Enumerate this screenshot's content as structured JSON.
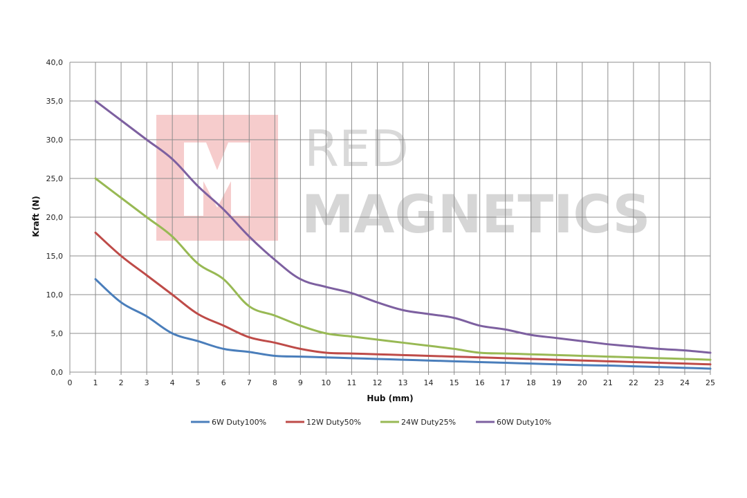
{
  "chart_data": {
    "type": "line",
    "xlabel": "Hub (mm)",
    "ylabel": "Kraft (N)",
    "xlim": [
      0,
      25
    ],
    "ylim": [
      0,
      40
    ],
    "x_ticks": [
      "0",
      "1",
      "2",
      "3",
      "4",
      "5",
      "6",
      "7",
      "8",
      "9",
      "10",
      "11",
      "12",
      "13",
      "14",
      "15",
      "16",
      "17",
      "18",
      "19",
      "20",
      "21",
      "22",
      "23",
      "24",
      "25"
    ],
    "y_ticks": [
      "0,0",
      "5,0",
      "10,0",
      "15,0",
      "20,0",
      "25,0",
      "30,0",
      "35,0",
      "40,0"
    ],
    "grid": true,
    "legend_position": "bottom",
    "x": [
      1,
      2,
      3,
      4,
      5,
      6,
      7,
      8,
      9,
      10,
      11,
      12,
      13,
      14,
      15,
      16,
      17,
      18,
      19,
      20,
      21,
      22,
      23,
      24,
      25
    ],
    "series": [
      {
        "name": "6W Duty100%",
        "color": "#4a7ebb",
        "values": [
          12.0,
          9.0,
          7.2,
          5.0,
          4.0,
          3.0,
          2.6,
          2.1,
          2.0,
          1.9,
          1.8,
          1.7,
          1.6,
          1.5,
          1.4,
          1.3,
          1.2,
          1.1,
          1.0,
          0.9,
          0.85,
          0.75,
          0.65,
          0.55,
          0.45
        ]
      },
      {
        "name": "12W Duty50%",
        "color": "#be4b48",
        "values": [
          18.0,
          15.0,
          12.5,
          10.0,
          7.5,
          6.0,
          4.5,
          3.8,
          3.0,
          2.5,
          2.4,
          2.3,
          2.2,
          2.1,
          2.0,
          1.9,
          1.8,
          1.7,
          1.6,
          1.5,
          1.4,
          1.3,
          1.2,
          1.1,
          1.0
        ]
      },
      {
        "name": "24W Duty25%",
        "color": "#98b954",
        "values": [
          25.0,
          22.5,
          20.0,
          17.5,
          14.0,
          12.0,
          8.5,
          7.3,
          6.0,
          5.0,
          4.6,
          4.2,
          3.8,
          3.4,
          3.0,
          2.5,
          2.4,
          2.3,
          2.2,
          2.1,
          2.0,
          1.9,
          1.8,
          1.7,
          1.6
        ]
      },
      {
        "name": "60W Duty10%",
        "color": "#7d60a0",
        "values": [
          35.0,
          32.5,
          30.0,
          27.5,
          24.0,
          21.0,
          17.5,
          14.5,
          12.0,
          11.0,
          10.2,
          9.0,
          8.0,
          7.5,
          7.0,
          6.0,
          5.5,
          4.8,
          4.4,
          4.0,
          3.6,
          3.3,
          3.0,
          2.8,
          2.5
        ]
      }
    ]
  },
  "watermark": {
    "line1": "RED",
    "line2": "MAGNETICS",
    "logo_color": "#f6cccc",
    "text_color": "#d6d6d6"
  }
}
